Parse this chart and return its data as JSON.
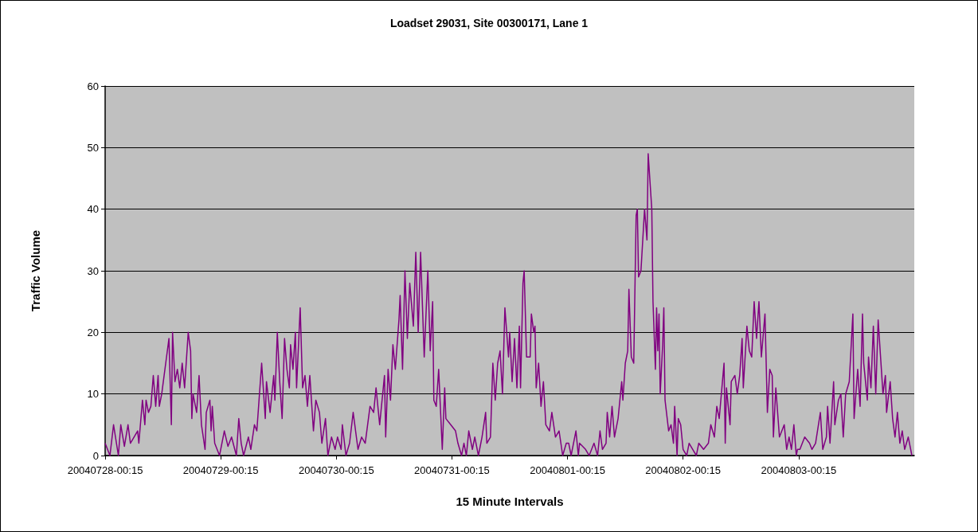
{
  "chart_data": {
    "type": "line",
    "title": "Loadset 29031, Site 00300171, Lane 1",
    "xlabel": "15 Minute Intervals",
    "ylabel": "Traffic Volume",
    "xlim": [
      "2004-07-28T00:15",
      "2004-08-04T00:15"
    ],
    "xticks": [
      {
        "value": "2004-07-28T00:15",
        "label": "20040728-00:15"
      },
      {
        "value": "2004-07-29T00:15",
        "label": "20040729-00:15"
      },
      {
        "value": "2004-07-30T00:15",
        "label": "20040730-00:15"
      },
      {
        "value": "2004-07-31T00:15",
        "label": "20040731-00:15"
      },
      {
        "value": "2004-08-01T00:15",
        "label": "20040801-00:15"
      },
      {
        "value": "2004-08-02T00:15",
        "label": "20040802-00:15"
      },
      {
        "value": "2004-08-03T00:15",
        "label": "20040803-00:15"
      }
    ],
    "ylim": [
      0,
      60
    ],
    "yticks": [
      0,
      10,
      20,
      30,
      40,
      50,
      60
    ],
    "grid": "y",
    "marker": "none",
    "line_style": "solid",
    "series": [
      {
        "color": "#800080",
        "x": [
          "2004-07-28T00:15",
          "2004-07-28T01:15",
          "2004-07-28T02:00",
          "2004-07-28T03:00",
          "2004-07-28T03:30",
          "2004-07-28T04:15",
          "2004-07-28T05:00",
          "2004-07-28T05:30",
          "2004-07-28T07:00",
          "2004-07-28T07:15",
          "2004-07-28T08:00",
          "2004-07-28T08:30",
          "2004-07-28T08:45",
          "2004-07-28T09:15",
          "2004-07-28T09:45",
          "2004-07-28T10:15",
          "2004-07-28T10:45",
          "2004-07-28T11:15",
          "2004-07-28T11:30",
          "2004-07-28T12:00",
          "2004-07-28T12:30",
          "2004-07-28T13:00",
          "2004-07-28T13:30",
          "2004-07-28T14:00",
          "2004-07-28T14:15",
          "2004-07-28T14:45",
          "2004-07-28T15:15",
          "2004-07-28T15:45",
          "2004-07-28T16:15",
          "2004-07-28T16:45",
          "2004-07-28T17:30",
          "2004-07-28T18:00",
          "2004-07-28T18:15",
          "2004-07-28T18:30",
          "2004-07-28T19:15",
          "2004-07-28T19:45",
          "2004-07-28T20:15",
          "2004-07-28T21:00",
          "2004-07-28T21:15",
          "2004-07-28T22:00",
          "2004-07-28T22:15",
          "2004-07-28T22:30",
          "2004-07-28T23:00",
          "2004-07-28T23:30",
          "2004-07-29T00:00",
          "2004-07-29T01:00",
          "2004-07-29T01:45",
          "2004-07-29T02:30",
          "2004-07-29T03:30",
          "2004-07-29T04:00",
          "2004-07-29T04:30",
          "2004-07-29T05:00",
          "2004-07-29T06:00",
          "2004-07-29T06:30",
          "2004-07-29T07:15",
          "2004-07-29T07:45",
          "2004-07-29T08:45",
          "2004-07-29T09:30",
          "2004-07-29T09:45",
          "2004-07-29T10:30",
          "2004-07-29T11:15",
          "2004-07-29T11:30",
          "2004-07-29T12:00",
          "2004-07-29T12:30",
          "2004-07-29T13:00",
          "2004-07-29T13:30",
          "2004-07-29T14:00",
          "2004-07-29T14:30",
          "2004-07-29T14:45",
          "2004-07-29T15:15",
          "2004-07-29T15:45",
          "2004-07-29T16:00",
          "2004-07-29T16:45",
          "2004-07-29T17:15",
          "2004-07-29T17:45",
          "2004-07-29T18:15",
          "2004-07-29T18:45",
          "2004-07-29T19:30",
          "2004-07-29T20:00",
          "2004-07-29T20:45",
          "2004-07-29T21:15",
          "2004-07-29T22:00",
          "2004-07-29T22:30",
          "2004-07-29T23:15",
          "2004-07-30T00:00",
          "2004-07-30T00:30",
          "2004-07-30T01:15",
          "2004-07-30T01:30",
          "2004-07-30T02:15",
          "2004-07-30T03:00",
          "2004-07-30T03:45",
          "2004-07-30T04:45",
          "2004-07-30T05:30",
          "2004-07-30T06:15",
          "2004-07-30T07:15",
          "2004-07-30T08:00",
          "2004-07-30T08:30",
          "2004-07-30T09:15",
          "2004-07-30T10:15",
          "2004-07-30T10:30",
          "2004-07-30T11:00",
          "2004-07-30T11:30",
          "2004-07-30T12:00",
          "2004-07-30T12:30",
          "2004-07-30T13:15",
          "2004-07-30T13:30",
          "2004-07-30T14:00",
          "2004-07-30T14:30",
          "2004-07-30T15:00",
          "2004-07-30T15:30",
          "2004-07-30T16:15",
          "2004-07-30T16:45",
          "2004-07-30T17:15",
          "2004-07-30T17:45",
          "2004-07-30T18:30",
          "2004-07-30T19:15",
          "2004-07-30T19:45",
          "2004-07-30T20:15",
          "2004-07-30T20:30",
          "2004-07-30T21:00",
          "2004-07-30T21:30",
          "2004-07-30T22:15",
          "2004-07-30T22:45",
          "2004-07-30T23:00",
          "2004-07-31T00:00",
          "2004-07-31T01:00",
          "2004-07-31T01:30",
          "2004-07-31T02:15",
          "2004-07-31T02:45",
          "2004-07-31T03:15",
          "2004-07-31T03:45",
          "2004-07-31T04:30",
          "2004-07-31T05:00",
          "2004-07-31T05:45",
          "2004-07-31T06:30",
          "2004-07-31T07:15",
          "2004-07-31T07:30",
          "2004-07-31T08:15",
          "2004-07-31T08:45",
          "2004-07-31T09:15",
          "2004-07-31T09:45",
          "2004-07-31T10:15",
          "2004-07-31T10:45",
          "2004-07-31T11:15",
          "2004-07-31T12:00",
          "2004-07-31T12:15",
          "2004-07-31T12:45",
          "2004-07-31T13:15",
          "2004-07-31T13:45",
          "2004-07-31T14:15",
          "2004-07-31T14:30",
          "2004-07-31T15:00",
          "2004-07-31T15:15",
          "2004-07-31T15:45",
          "2004-07-31T16:30",
          "2004-07-31T16:45",
          "2004-07-31T17:15",
          "2004-07-31T17:30",
          "2004-07-31T17:45",
          "2004-07-31T18:15",
          "2004-07-31T18:45",
          "2004-07-31T19:15",
          "2004-07-31T19:45",
          "2004-07-31T20:30",
          "2004-07-31T21:00",
          "2004-07-31T21:45",
          "2004-07-31T22:30",
          "2004-07-31T23:15",
          "2004-08-01T00:00",
          "2004-08-01T00:30",
          "2004-08-01T01:00",
          "2004-08-01T02:00",
          "2004-08-01T02:30",
          "2004-08-01T02:45",
          "2004-08-01T04:00",
          "2004-08-01T04:45",
          "2004-08-01T05:45",
          "2004-08-01T06:30",
          "2004-08-01T07:00",
          "2004-08-01T07:30",
          "2004-08-01T08:15",
          "2004-08-01T08:30",
          "2004-08-01T09:00",
          "2004-08-01T09:30",
          "2004-08-01T10:00",
          "2004-08-01T10:45",
          "2004-08-01T11:30",
          "2004-08-01T11:45",
          "2004-08-01T12:15",
          "2004-08-01T12:45",
          "2004-08-01T13:00",
          "2004-08-01T13:30",
          "2004-08-01T14:00",
          "2004-08-01T14:30",
          "2004-08-01T14:45",
          "2004-08-01T15:00",
          "2004-08-01T15:30",
          "2004-08-01T16:15",
          "2004-08-01T16:45",
          "2004-08-01T17:00",
          "2004-08-01T17:45",
          "2004-08-01T18:00",
          "2004-08-01T18:30",
          "2004-08-01T18:45",
          "2004-08-01T19:00",
          "2004-08-01T19:15",
          "2004-08-01T19:30",
          "2004-08-01T20:00",
          "2004-08-01T20:15",
          "2004-08-01T20:30",
          "2004-08-01T21:15",
          "2004-08-01T21:45",
          "2004-08-01T22:15",
          "2004-08-01T22:30",
          "2004-08-01T23:00",
          "2004-08-01T23:15",
          "2004-08-01T23:45",
          "2004-08-02T00:15",
          "2004-08-02T01:00",
          "2004-08-02T01:30",
          "2004-08-02T02:15",
          "2004-08-02T03:00",
          "2004-08-02T03:30",
          "2004-08-02T04:30",
          "2004-08-02T05:30",
          "2004-08-02T06:00",
          "2004-08-02T06:45",
          "2004-08-02T07:15",
          "2004-08-02T07:45",
          "2004-08-02T08:45",
          "2004-08-02T09:00",
          "2004-08-02T09:15",
          "2004-08-02T10:00",
          "2004-08-02T10:15",
          "2004-08-02T11:00",
          "2004-08-02T11:30",
          "2004-08-02T12:00",
          "2004-08-02T12:30",
          "2004-08-02T12:45",
          "2004-08-02T13:30",
          "2004-08-02T14:00",
          "2004-08-02T14:30",
          "2004-08-02T15:00",
          "2004-08-02T15:30",
          "2004-08-02T16:00",
          "2004-08-02T16:30",
          "2004-08-02T17:15",
          "2004-08-02T17:45",
          "2004-08-02T18:15",
          "2004-08-02T18:45",
          "2004-08-02T19:00",
          "2004-08-02T19:30",
          "2004-08-02T20:15",
          "2004-08-02T21:15",
          "2004-08-02T21:45",
          "2004-08-02T22:15",
          "2004-08-02T22:45",
          "2004-08-02T23:15",
          "2004-08-02T23:45",
          "2004-08-03T00:00",
          "2004-08-03T00:30",
          "2004-08-03T01:30",
          "2004-08-03T02:30",
          "2004-08-03T03:00",
          "2004-08-03T03:45",
          "2004-08-03T04:45",
          "2004-08-03T05:15",
          "2004-08-03T06:00",
          "2004-08-03T06:15",
          "2004-08-03T06:45",
          "2004-08-03T07:30",
          "2004-08-03T07:45",
          "2004-08-03T08:30",
          "2004-08-03T09:00",
          "2004-08-03T09:30",
          "2004-08-03T10:00",
          "2004-08-03T10:45",
          "2004-08-03T11:30",
          "2004-08-03T11:45",
          "2004-08-03T12:30",
          "2004-08-03T13:00",
          "2004-08-03T13:30",
          "2004-08-03T13:45",
          "2004-08-03T14:30",
          "2004-08-03T14:45",
          "2004-08-03T15:15",
          "2004-08-03T15:45",
          "2004-08-03T16:15",
          "2004-08-03T16:45",
          "2004-08-03T17:15",
          "2004-08-03T17:45",
          "2004-08-03T18:15",
          "2004-08-03T18:30",
          "2004-08-03T19:15",
          "2004-08-03T19:45",
          "2004-08-03T20:15",
          "2004-08-03T20:45",
          "2004-08-03T21:15",
          "2004-08-03T21:45",
          "2004-08-03T22:15",
          "2004-08-03T23:00",
          "2004-08-03T23:30",
          "2004-08-03T23:45"
        ],
        "values": [
          2,
          0,
          5,
          0,
          5,
          1.5,
          5,
          2,
          4,
          2,
          9,
          5,
          9,
          7,
          8,
          13,
          8,
          13,
          8,
          10,
          13,
          16,
          19,
          5,
          20,
          12,
          14,
          11,
          15,
          11,
          20,
          17,
          6,
          10,
          7,
          13,
          5,
          1,
          7,
          9,
          4,
          8,
          2,
          1,
          0,
          4,
          1.5,
          3,
          0,
          6,
          2,
          0,
          3,
          1,
          5,
          4,
          15,
          6,
          12,
          7,
          13,
          9,
          20,
          12,
          6,
          19,
          14,
          11,
          18,
          14,
          20,
          11,
          24,
          11,
          13,
          8,
          13,
          4,
          9,
          7,
          2,
          6,
          0,
          3,
          1,
          3,
          1,
          5,
          0,
          2,
          7,
          1,
          3,
          2,
          8,
          7,
          11,
          5,
          13,
          3,
          14,
          9,
          18,
          14,
          22,
          26,
          14,
          30,
          19,
          28,
          21,
          33,
          20,
          33,
          16,
          30,
          17,
          25,
          9,
          8,
          14,
          1,
          11,
          6,
          5,
          4,
          2,
          0,
          2,
          0,
          4,
          1,
          3,
          0,
          3,
          7,
          2,
          3,
          15,
          9,
          15,
          17,
          10,
          24,
          16,
          20,
          12,
          19,
          11,
          21,
          11,
          28,
          30,
          16,
          16,
          23,
          20,
          21,
          11,
          15,
          8,
          12,
          5,
          4,
          7,
          3,
          4,
          0,
          2,
          2,
          0,
          4,
          0,
          2,
          1,
          0,
          2,
          0,
          4,
          1,
          2,
          7,
          3,
          8,
          3,
          6,
          12,
          9,
          15,
          17,
          27,
          16,
          15,
          39,
          40,
          29,
          30,
          40,
          35,
          49,
          40,
          25,
          14,
          24,
          17,
          23,
          10,
          18,
          24,
          9,
          4,
          5,
          2,
          8,
          0,
          6,
          5,
          1,
          0,
          2,
          1,
          0,
          2,
          1,
          2,
          5,
          3,
          8,
          6,
          15,
          2,
          11,
          5,
          12,
          13,
          10,
          13,
          19,
          11,
          21,
          17,
          16,
          25,
          19,
          25,
          16,
          23,
          7,
          14,
          13,
          3,
          11,
          3,
          5,
          1,
          3,
          1,
          5,
          0,
          1,
          1,
          3,
          2,
          1,
          2,
          7,
          1,
          3,
          8,
          2,
          12,
          5,
          9,
          10,
          3,
          10,
          12,
          23,
          6,
          14,
          8,
          23,
          15,
          9,
          16,
          11,
          21,
          10,
          22,
          16,
          10,
          13,
          7,
          12,
          6,
          3,
          7,
          2,
          4,
          1,
          3,
          1,
          0
        ]
      }
    ]
  }
}
